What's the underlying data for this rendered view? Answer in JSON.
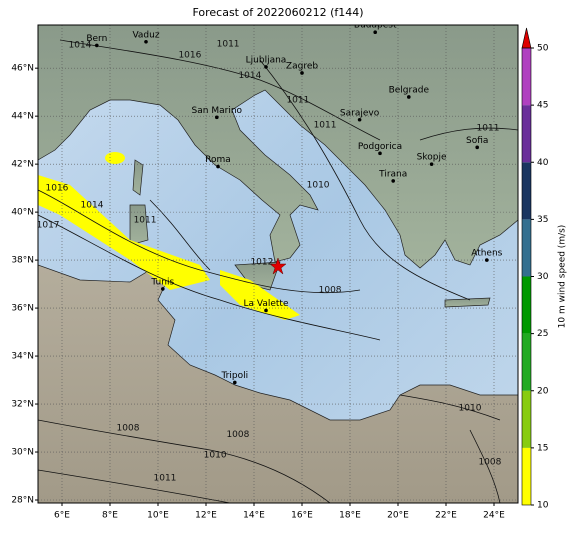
{
  "title": "Forecast of 2022060212 (f144)",
  "map": {
    "xlim": [
      5,
      25
    ],
    "ylim": [
      27.875,
      47.8
    ],
    "xticks": [
      {
        "value": 6,
        "label": "6°E"
      },
      {
        "value": 8,
        "label": "8°E"
      },
      {
        "value": 10,
        "label": "10°E"
      },
      {
        "value": 12,
        "label": "12°E"
      },
      {
        "value": 14,
        "label": "14°E"
      },
      {
        "value": 16,
        "label": "16°E"
      },
      {
        "value": 18,
        "label": "18°E"
      },
      {
        "value": 20,
        "label": "20°E"
      },
      {
        "value": 22,
        "label": "22°E"
      },
      {
        "value": 24,
        "label": "24°E"
      }
    ],
    "yticks": [
      {
        "value": 28,
        "label": "28°N"
      },
      {
        "value": 30,
        "label": "30°N"
      },
      {
        "value": 32,
        "label": "32°N"
      },
      {
        "value": 34,
        "label": "34°N"
      },
      {
        "value": 36,
        "label": "36°N"
      },
      {
        "value": 38,
        "label": "38°N"
      },
      {
        "value": 40,
        "label": "40°N"
      },
      {
        "value": 42,
        "label": "42°N"
      },
      {
        "value": 44,
        "label": "44°N"
      },
      {
        "value": 46,
        "label": "46°N"
      }
    ],
    "grid": true,
    "cities": [
      {
        "name": "Bern",
        "lon": 7.45,
        "lat": 46.95
      },
      {
        "name": "Vaduz",
        "lon": 9.5,
        "lat": 47.1
      },
      {
        "name": "Ljubljana",
        "lon": 14.5,
        "lat": 46.05
      },
      {
        "name": "Zagreb",
        "lon": 16.0,
        "lat": 45.8
      },
      {
        "name": "Budapest",
        "lon": 19.05,
        "lat": 47.5
      },
      {
        "name": "Belgrade",
        "lon": 20.45,
        "lat": 44.8
      },
      {
        "name": "Sarajevo",
        "lon": 18.4,
        "lat": 43.85
      },
      {
        "name": "San Marino",
        "lon": 12.45,
        "lat": 43.95
      },
      {
        "name": "Roma",
        "lon": 12.5,
        "lat": 41.9
      },
      {
        "name": "Podgorica",
        "lon": 19.25,
        "lat": 42.45
      },
      {
        "name": "Skopje",
        "lon": 21.4,
        "lat": 42.0
      },
      {
        "name": "Sofia",
        "lon": 23.3,
        "lat": 42.7
      },
      {
        "name": "Tirana",
        "lon": 19.8,
        "lat": 41.3
      },
      {
        "name": "Athens",
        "lon": 23.7,
        "lat": 38.0
      },
      {
        "name": "Tunis",
        "lon": 10.2,
        "lat": 36.8
      },
      {
        "name": "La Valette",
        "lon": 14.5,
        "lat": 35.9
      },
      {
        "name": "Tripoli",
        "lon": 13.2,
        "lat": 32.9
      }
    ],
    "isobar_labels": [
      {
        "value": 1014,
        "lon": 6.75,
        "lat": 46.97
      },
      {
        "value": 1016,
        "lon": 11.33,
        "lat": 46.55
      },
      {
        "value": 1011,
        "lon": 12.92,
        "lat": 47.0
      },
      {
        "value": 1014,
        "lon": 13.83,
        "lat": 45.7
      },
      {
        "value": 1011,
        "lon": 15.83,
        "lat": 44.68
      },
      {
        "value": 1011,
        "lon": 16.96,
        "lat": 43.63
      },
      {
        "value": 1016,
        "lon": 5.79,
        "lat": 41.01
      },
      {
        "value": 1014,
        "lon": 7.25,
        "lat": 40.3
      },
      {
        "value": 1017,
        "lon": 5.42,
        "lat": 39.47
      },
      {
        "value": 1011,
        "lon": 9.46,
        "lat": 39.68
      },
      {
        "value": 1012,
        "lon": 14.33,
        "lat": 37.93
      },
      {
        "value": 1010,
        "lon": 16.67,
        "lat": 41.13
      },
      {
        "value": 1008,
        "lon": 17.17,
        "lat": 36.76
      },
      {
        "value": 1011,
        "lon": 23.75,
        "lat": 43.51
      },
      {
        "value": 1010,
        "lon": 23.0,
        "lat": 31.84
      },
      {
        "value": 1008,
        "lon": 8.75,
        "lat": 31.01
      },
      {
        "value": 1008,
        "lon": 13.33,
        "lat": 30.72
      },
      {
        "value": 1010,
        "lon": 12.38,
        "lat": 29.88
      },
      {
        "value": 1011,
        "lon": 10.29,
        "lat": 28.92
      },
      {
        "value": 1008,
        "lon": 23.83,
        "lat": 29.59
      }
    ]
  },
  "colorbar": {
    "label": "10 m wind speed (m/s)",
    "lim": [
      10,
      50
    ],
    "ticks": [
      10,
      15,
      20,
      25,
      30,
      35,
      40,
      45,
      50
    ],
    "colors": [
      "#ffff00",
      "#88cc11",
      "#22aa22",
      "#009900",
      "#336f8f",
      "#1a3560",
      "#6a2f9a",
      "#b040c0"
    ],
    "extend_color": "#dd0000"
  }
}
